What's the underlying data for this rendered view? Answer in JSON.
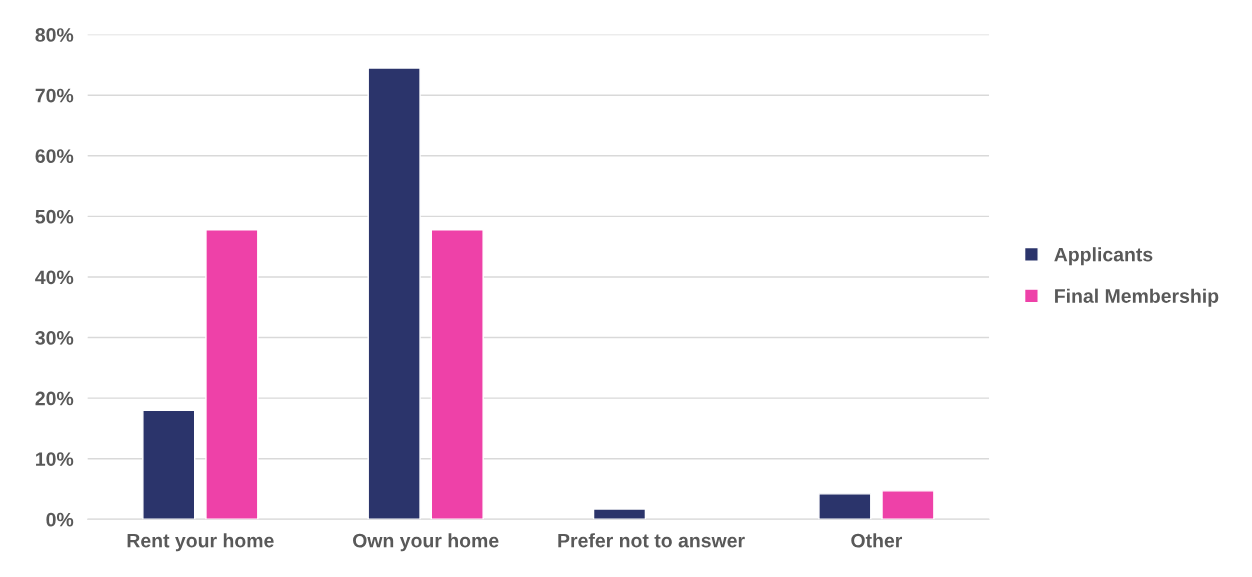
{
  "chart_data": {
    "type": "bar",
    "categories": [
      "Rent your home",
      "Own your home",
      "Prefer not to answer",
      "Other"
    ],
    "series": [
      {
        "name": "Applicants",
        "color": "#2b346b",
        "values": [
          18,
          74.5,
          1.7,
          4.2
        ]
      },
      {
        "name": "Final Membership",
        "color": "#ee41a8",
        "values": [
          47.8,
          47.8,
          null,
          4.7
        ]
      }
    ],
    "ylim": [
      0,
      80
    ],
    "yticks": [
      {
        "value": 0,
        "label": "0%"
      },
      {
        "value": 10,
        "label": "10%"
      },
      {
        "value": 20,
        "label": "20%"
      },
      {
        "value": 30,
        "label": "30%"
      },
      {
        "value": 40,
        "label": "40%"
      },
      {
        "value": 50,
        "label": "50%"
      },
      {
        "value": 60,
        "label": "60%"
      },
      {
        "value": 70,
        "label": "70%"
      },
      {
        "value": 80,
        "label": "80%"
      }
    ],
    "grid": "y",
    "legend": "right"
  }
}
